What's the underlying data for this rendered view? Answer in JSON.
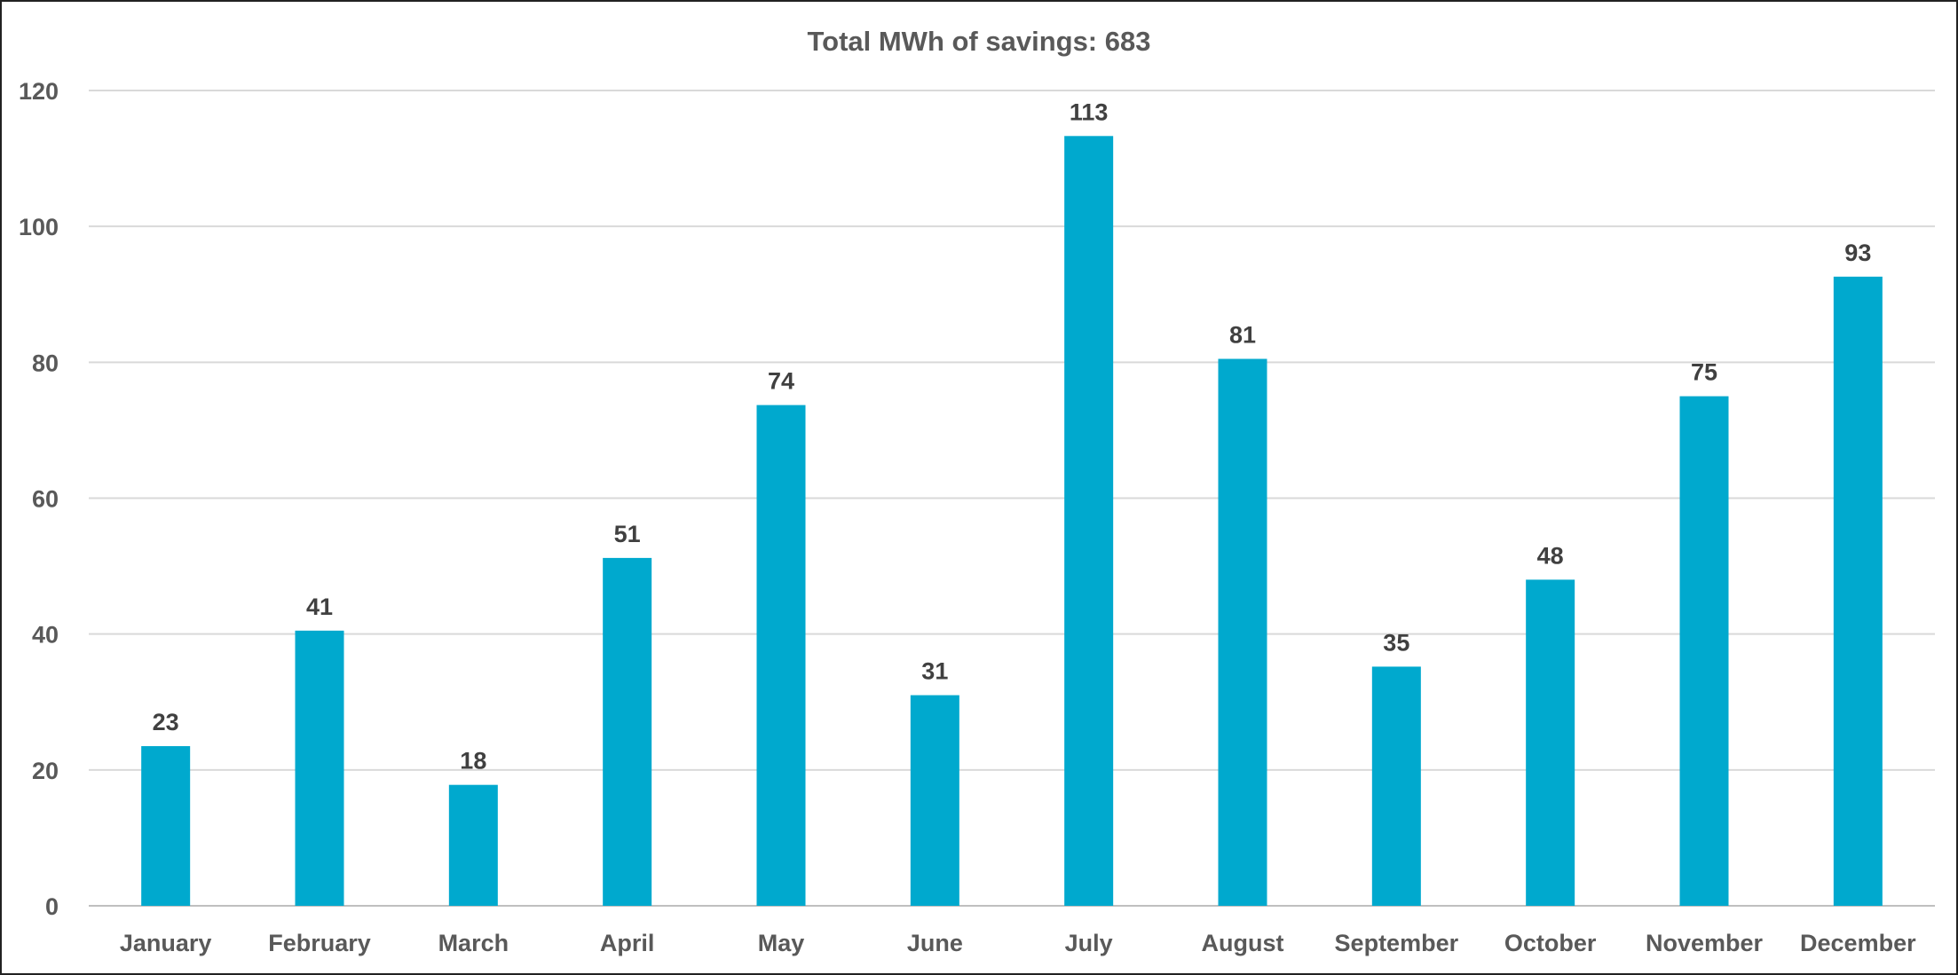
{
  "chart_data": {
    "type": "bar",
    "title": "Total MWh of savings: 683",
    "xlabel": "",
    "ylabel": "",
    "categories": [
      "January",
      "February",
      "March",
      "April",
      "May",
      "June",
      "July",
      "August",
      "September",
      "October",
      "November",
      "December"
    ],
    "values": [
      23.5,
      40.5,
      17.8,
      51.2,
      73.7,
      31.0,
      113.3,
      80.5,
      35.2,
      48.0,
      75.0,
      92.6
    ],
    "data_labels": [
      "23",
      "41",
      "18",
      "51",
      "74",
      "31",
      "113",
      "81",
      "35",
      "48",
      "75",
      "93"
    ],
    "ylim": [
      0,
      120
    ],
    "yticks": [
      "0",
      "20",
      "40",
      "60",
      "80",
      "100",
      "120"
    ],
    "grid": true,
    "legend": "none",
    "bar_color": "#00A9CE"
  }
}
